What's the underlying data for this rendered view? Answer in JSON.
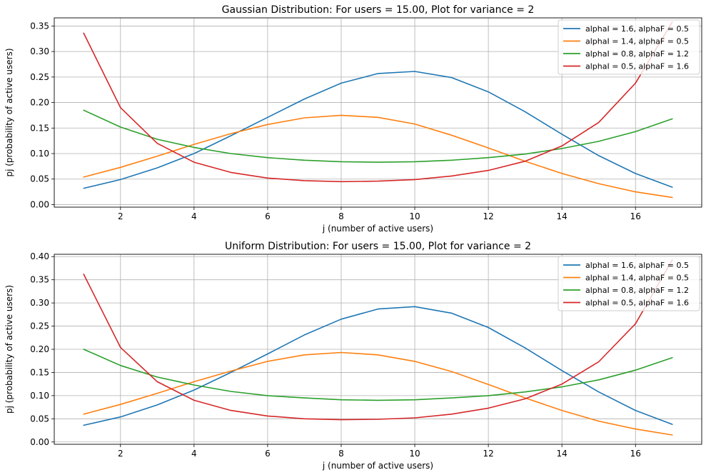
{
  "chart_data": [
    {
      "type": "line",
      "title": "Gaussian Distribution: For users = 15.00, Plot for variance = 2",
      "xlabel": "j (number of active users)",
      "ylabel": "pj (probability of active users)",
      "xlim": [
        0.2,
        17.8
      ],
      "ylim": [
        -0.005,
        0.366
      ],
      "xticks": [
        2,
        4,
        6,
        8,
        10,
        12,
        14,
        16
      ],
      "xtick_labels": [
        "2",
        "4",
        "6",
        "8",
        "10",
        "12",
        "14",
        "16"
      ],
      "yticks": [
        0.0,
        0.05,
        0.1,
        0.15,
        0.2,
        0.25,
        0.3,
        0.35
      ],
      "ytick_labels": [
        "0.00",
        "0.05",
        "0.10",
        "0.15",
        "0.20",
        "0.25",
        "0.30",
        "0.35"
      ],
      "grid": true,
      "legend_position": "top-right",
      "x": [
        1,
        2,
        3,
        4,
        5,
        6,
        7,
        8,
        9,
        10,
        11,
        12,
        13,
        14,
        15,
        16,
        17
      ],
      "series": [
        {
          "name": "alphaI = 1.6, alphaF = 0.5",
          "color": "#1f77b4",
          "values": [
            0.032,
            0.049,
            0.072,
            0.1,
            0.135,
            0.171,
            0.207,
            0.238,
            0.257,
            0.261,
            0.249,
            0.221,
            0.182,
            0.138,
            0.096,
            0.061,
            0.034
          ]
        },
        {
          "name": "alphaI = 1.4, alphaF = 0.5",
          "color": "#ff7f0e",
          "values": [
            0.054,
            0.073,
            0.095,
            0.118,
            0.139,
            0.157,
            0.17,
            0.175,
            0.171,
            0.158,
            0.136,
            0.111,
            0.085,
            0.061,
            0.041,
            0.025,
            0.014
          ]
        },
        {
          "name": "alphaI = 0.8, alphaF = 1.2",
          "color": "#2ca02c",
          "values": [
            0.185,
            0.152,
            0.128,
            0.112,
            0.1,
            0.092,
            0.087,
            0.084,
            0.083,
            0.084,
            0.087,
            0.092,
            0.099,
            0.11,
            0.124,
            0.143,
            0.168
          ]
        },
        {
          "name": "alphaI = 0.5, alphaF = 1.6",
          "color": "#d62728",
          "values": [
            0.336,
            0.19,
            0.12,
            0.083,
            0.063,
            0.052,
            0.047,
            0.045,
            0.046,
            0.049,
            0.056,
            0.067,
            0.085,
            0.115,
            0.161,
            0.238,
            0.358
          ]
        }
      ]
    },
    {
      "type": "line",
      "title": "Uniform Distribution: For users = 15.00, Plot for variance = 2",
      "xlabel": "j (number of active users)",
      "ylabel": "pj (probability of active users)",
      "xlim": [
        0.2,
        17.8
      ],
      "ylim": [
        -0.005,
        0.405
      ],
      "xticks": [
        2,
        4,
        6,
        8,
        10,
        12,
        14,
        16
      ],
      "xtick_labels": [
        "2",
        "4",
        "6",
        "8",
        "10",
        "12",
        "14",
        "16"
      ],
      "yticks": [
        0.0,
        0.05,
        0.1,
        0.15,
        0.2,
        0.25,
        0.3,
        0.35,
        0.4
      ],
      "ytick_labels": [
        "0.00",
        "0.05",
        "0.10",
        "0.15",
        "0.20",
        "0.25",
        "0.30",
        "0.35",
        "0.40"
      ],
      "grid": true,
      "legend_position": "top-right",
      "x": [
        1,
        2,
        3,
        4,
        5,
        6,
        7,
        8,
        9,
        10,
        11,
        12,
        13,
        14,
        15,
        16,
        17
      ],
      "series": [
        {
          "name": "alphaI = 1.6, alphaF = 0.5",
          "color": "#1f77b4",
          "values": [
            0.036,
            0.054,
            0.08,
            0.112,
            0.15,
            0.19,
            0.231,
            0.265,
            0.287,
            0.292,
            0.278,
            0.247,
            0.203,
            0.154,
            0.108,
            0.068,
            0.038
          ]
        },
        {
          "name": "alphaI = 1.4, alphaF = 0.5",
          "color": "#ff7f0e",
          "values": [
            0.06,
            0.081,
            0.105,
            0.13,
            0.153,
            0.174,
            0.188,
            0.193,
            0.188,
            0.174,
            0.152,
            0.124,
            0.095,
            0.068,
            0.045,
            0.028,
            0.015
          ]
        },
        {
          "name": "alphaI = 0.8, alphaF = 1.2",
          "color": "#2ca02c",
          "values": [
            0.2,
            0.165,
            0.14,
            0.123,
            0.109,
            0.1,
            0.095,
            0.091,
            0.09,
            0.091,
            0.095,
            0.1,
            0.108,
            0.119,
            0.134,
            0.155,
            0.182
          ]
        },
        {
          "name": "alphaI = 0.5, alphaF = 1.6",
          "color": "#d62728",
          "values": [
            0.362,
            0.204,
            0.13,
            0.09,
            0.068,
            0.056,
            0.05,
            0.048,
            0.049,
            0.052,
            0.06,
            0.073,
            0.093,
            0.125,
            0.173,
            0.255,
            0.393
          ]
        }
      ]
    }
  ]
}
